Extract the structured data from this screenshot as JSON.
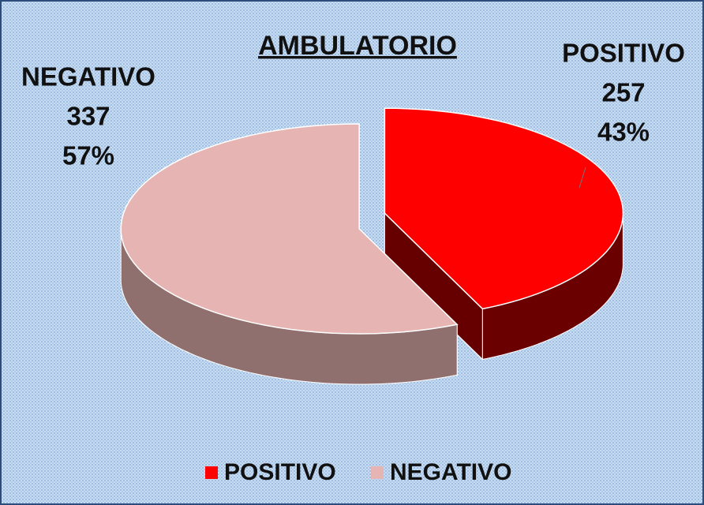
{
  "chart_data": {
    "type": "pie",
    "title": "AMBULATORIO",
    "categories": [
      "POSITIVO",
      "NEGATIVO"
    ],
    "values": [
      257,
      337
    ],
    "percent_labels": [
      "43%",
      "57%"
    ],
    "colors": [
      "#ff0000",
      "#e6b4b2"
    ],
    "legend": "bottom"
  }
}
